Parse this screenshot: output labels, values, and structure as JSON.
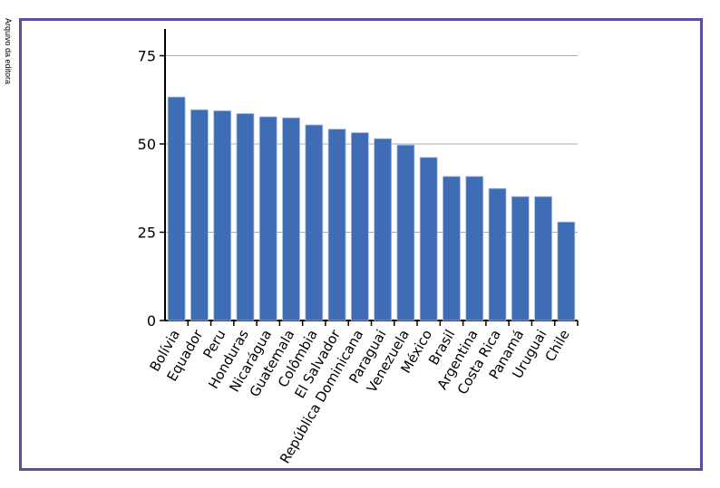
{
  "credit": "Arquivo da editora",
  "chart_data": {
    "type": "bar",
    "title": "",
    "xlabel": "",
    "ylabel": "",
    "categories": [
      "Bolívia",
      "Equador",
      "Peru",
      "Honduras",
      "Nicarágua",
      "Guatemala",
      "Colômbia",
      "El Salvador",
      "República Dominicana",
      "Paraguai",
      "Venezuela",
      "México",
      "Brasil",
      "Argentina",
      "Costa Rica",
      "Panamá",
      "Uruguai",
      "Chile"
    ],
    "values": [
      63.3,
      59.7,
      59.4,
      58.6,
      57.7,
      57.4,
      55.4,
      54.2,
      53.2,
      51.5,
      49.7,
      46.2,
      40.8,
      40.8,
      37.4,
      35.1,
      35.1,
      27.9
    ],
    "ylim": [
      0,
      82
    ],
    "yticks": [
      0,
      25,
      50,
      75
    ],
    "grid": true,
    "bar_color": "#3f6db5",
    "frame_color": "#5a4e9f"
  }
}
